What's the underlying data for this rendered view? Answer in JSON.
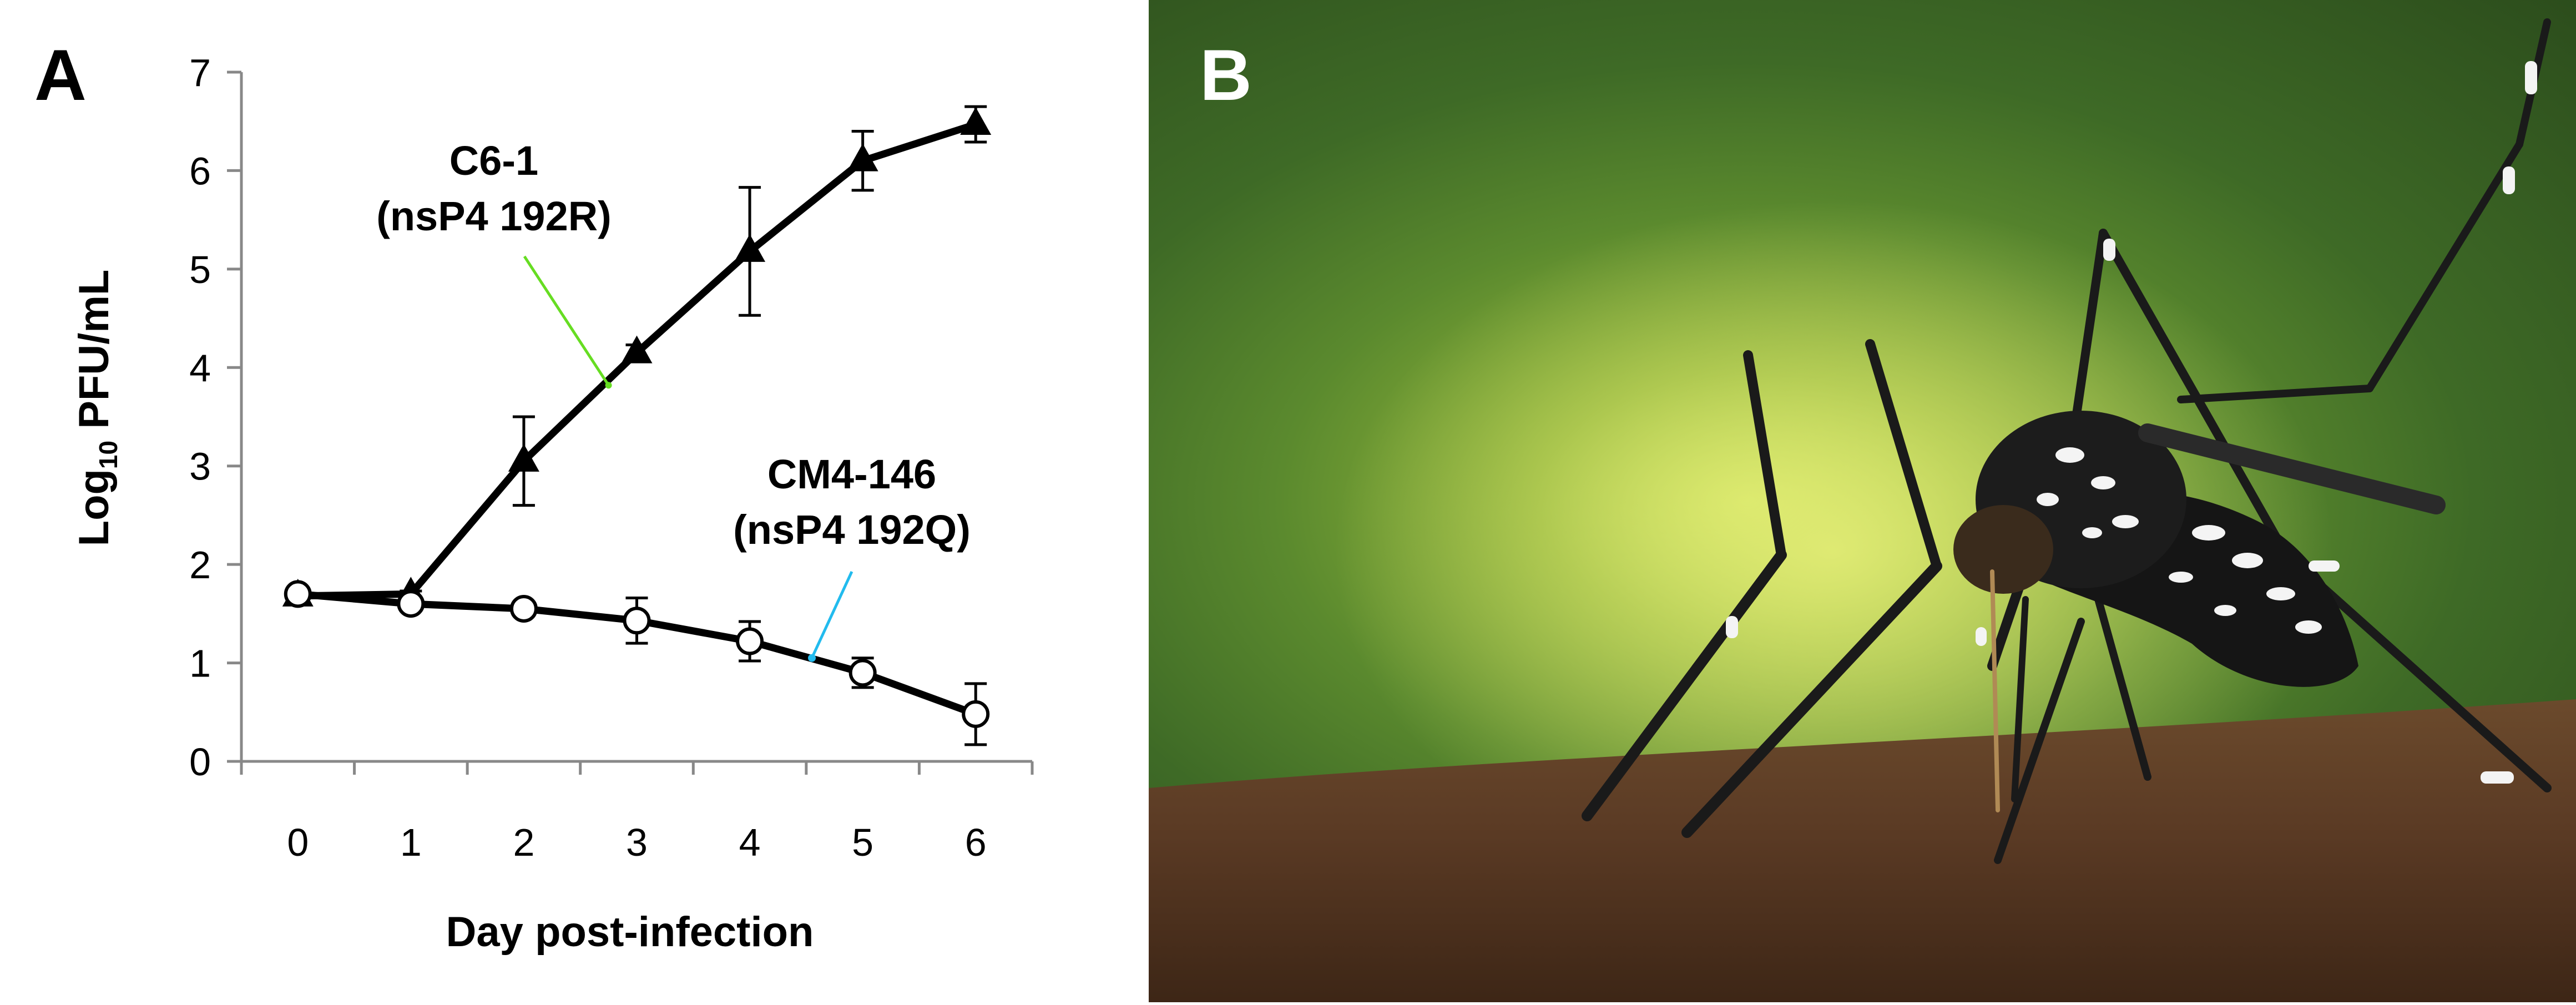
{
  "panels": {
    "a_label": "A",
    "b_label": "B"
  },
  "chart_data": {
    "type": "line",
    "title": "",
    "xlabel": "Day post-infection",
    "ylabel": {
      "prefix": "Log",
      "subscript": "10",
      "suffix": " PFU/mL"
    },
    "x": [
      0,
      1,
      2,
      3,
      4,
      5,
      6
    ],
    "x_ticks": [
      "0",
      "1",
      "2",
      "3",
      "4",
      "5",
      "6"
    ],
    "y_ticks": [
      "0",
      "1",
      "2",
      "3",
      "4",
      "5",
      "6",
      "7"
    ],
    "xlim": [
      -0.5,
      6.5
    ],
    "ylim": [
      0,
      7
    ],
    "grid": false,
    "legend": "none",
    "series": [
      {
        "id": "c6",
        "marker": "filled-triangle",
        "values": [
          1.68,
          1.7,
          3.05,
          4.15,
          5.18,
          6.1,
          6.47
        ],
        "error": [
          0.03,
          0.03,
          0.45,
          0.08,
          0.65,
          0.3,
          0.18
        ]
      },
      {
        "id": "cm4",
        "marker": "open-circle",
        "values": [
          1.7,
          1.6,
          1.55,
          1.43,
          1.22,
          0.9,
          0.48
        ],
        "error": [
          0.04,
          0.04,
          0.06,
          0.23,
          0.2,
          0.15,
          0.31
        ]
      }
    ],
    "annotations": [
      {
        "series": "c6",
        "line1": "C6-1",
        "line2": "(nsP4 192R)",
        "color": "#66dd22",
        "point_x": 2.75,
        "point_y": 3.82
      },
      {
        "series": "cm4",
        "line1": "CM4-146",
        "line2": "(nsP4 192Q)",
        "color": "#22bbee",
        "point_x": 4.55,
        "point_y": 1.05
      }
    ]
  }
}
